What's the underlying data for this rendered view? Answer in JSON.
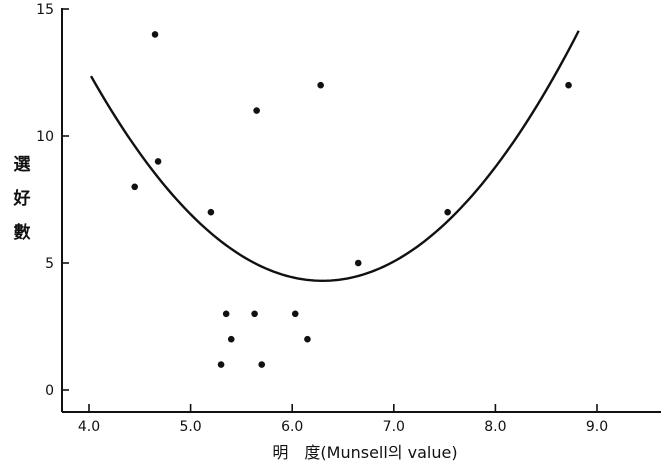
{
  "chart_data": {
    "type": "scatter",
    "title": "",
    "xlabel": "明　度(Munsell의 value)",
    "ylabel": "選好數",
    "xlim": [
      4.0,
      9.8
    ],
    "ylim": [
      -0.3,
      15.2
    ],
    "x_ticks": [
      {
        "value": 4.0,
        "label": "4.0"
      },
      {
        "value": 5.0,
        "label": "5.0"
      },
      {
        "value": 6.0,
        "label": "6.0"
      },
      {
        "value": 7.0,
        "label": "7.0"
      },
      {
        "value": 8.0,
        "label": "8.0"
      },
      {
        "value": 9.0,
        "label": "9.0"
      }
    ],
    "y_ticks": [
      {
        "value": 0,
        "label": "0"
      },
      {
        "value": 5,
        "label": "5"
      },
      {
        "value": 10,
        "label": "10"
      },
      {
        "value": 15,
        "label": "15"
      }
    ],
    "points": [
      {
        "x": 4.45,
        "y": 8
      },
      {
        "x": 4.65,
        "y": 14
      },
      {
        "x": 4.68,
        "y": 9
      },
      {
        "x": 5.2,
        "y": 7
      },
      {
        "x": 5.3,
        "y": 1
      },
      {
        "x": 5.35,
        "y": 3
      },
      {
        "x": 5.4,
        "y": 2
      },
      {
        "x": 5.63,
        "y": 3
      },
      {
        "x": 5.65,
        "y": 11
      },
      {
        "x": 5.7,
        "y": 1
      },
      {
        "x": 6.03,
        "y": 3
      },
      {
        "x": 6.15,
        "y": 2
      },
      {
        "x": 6.28,
        "y": 12
      },
      {
        "x": 6.65,
        "y": 5
      },
      {
        "x": 7.53,
        "y": 7
      },
      {
        "x": 8.72,
        "y": 12
      }
    ],
    "fit_curve": {
      "type": "quadratic",
      "x_range": [
        4.02,
        8.82
      ],
      "vertex_x": 6.3,
      "vertex_y": 4.3,
      "a": 1.55
    },
    "grid": false,
    "legend": "none",
    "colors": {
      "ink": "#111111",
      "background": "#ffffff"
    }
  }
}
